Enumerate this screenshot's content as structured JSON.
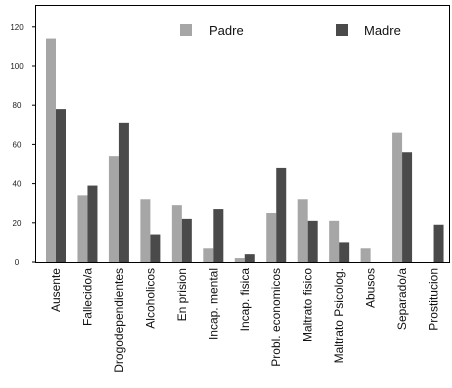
{
  "chart_data": {
    "type": "bar",
    "categories": [
      "Ausente",
      "Fallecido/a",
      "Drogodependientes",
      "Alcoholicos",
      "En prision",
      "Incap. mental",
      "Incap. fisica",
      "Probl. economicos",
      "Maltrato fisico",
      "Maltrato Psicolog.",
      "Abusos",
      "Separado/a",
      "Prostitucion"
    ],
    "series": [
      {
        "name": "Padre",
        "color": "#a6a6a6",
        "values": [
          114,
          34,
          54,
          32,
          29,
          7,
          2,
          25,
          32,
          21,
          7,
          66,
          0
        ]
      },
      {
        "name": "Madre",
        "color": "#4a4a4a",
        "values": [
          78,
          39,
          71,
          14,
          22,
          27,
          4,
          48,
          21,
          10,
          0,
          56,
          19
        ]
      }
    ],
    "ylim": [
      0,
      130
    ],
    "yticks": [
      0,
      20,
      40,
      60,
      80,
      100,
      120
    ],
    "grid": false,
    "legend": "top-right"
  }
}
